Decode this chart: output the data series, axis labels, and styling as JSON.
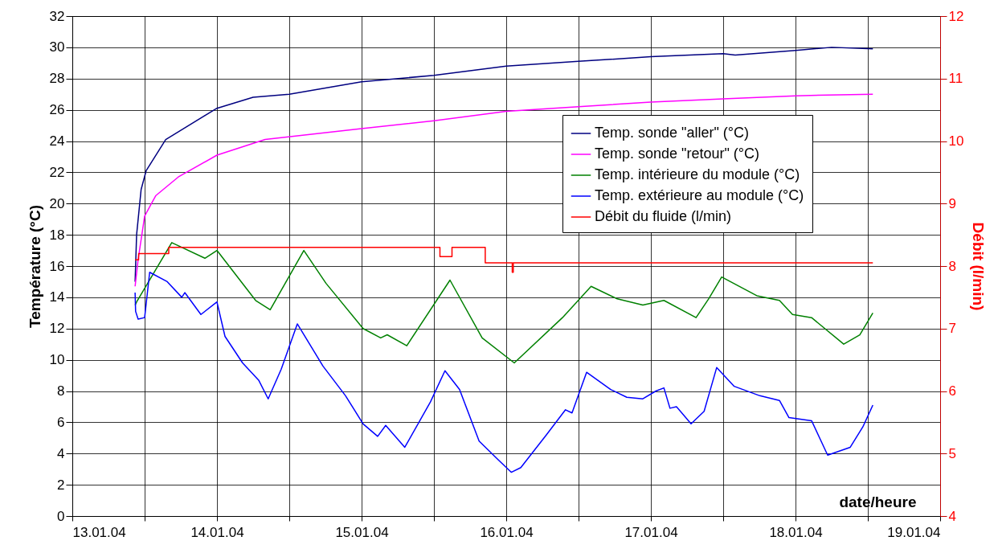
{
  "chart_data": {
    "type": "line",
    "xlabel": "date/heure",
    "ylabel": "Température (°C)",
    "y2label": "Débit (l/min)",
    "xlim": [
      "--01-13",
      "--01-19"
    ],
    "xticks": [
      {
        "value": "--01-13",
        "label": "13.01.04"
      },
      {
        "value": "--01-13T12:00",
        "label": null
      },
      {
        "value": "--01-14",
        "label": "14.01.04"
      },
      {
        "value": "--01-14T12:00",
        "label": null
      },
      {
        "value": "--01-15",
        "label": "15.01.04"
      },
      {
        "value": "--01-15T12:00",
        "label": null
      },
      {
        "value": "--01-16",
        "label": "16.01.04"
      },
      {
        "value": "--01-16T12:00",
        "label": null
      },
      {
        "value": "--01-17",
        "label": "17.01.04"
      },
      {
        "value": "--01-17T12:00",
        "label": null
      },
      {
        "value": "--01-18",
        "label": "18.01.04"
      },
      {
        "value": "--01-18T12:00",
        "label": null
      },
      {
        "value": "--01-19",
        "label": "19.01.04"
      }
    ],
    "ylim": [
      0,
      32
    ],
    "yticks": [
      0,
      2,
      4,
      6,
      8,
      10,
      12,
      14,
      16,
      18,
      20,
      22,
      24,
      26,
      28,
      30,
      32
    ],
    "y2lim": [
      4,
      12
    ],
    "y2ticks": [
      4,
      5,
      6,
      7,
      8,
      9,
      10,
      11,
      12
    ],
    "grid": true,
    "legend": "top right",
    "series": [
      {
        "name": "Temp. sonde \"aller\" (°C)",
        "color": "#000080",
        "x": [
          "--01-13T10:25",
          "--01-13T10:40",
          "--01-13T11:25",
          "--01-13T12:15",
          "--01-13T15:30",
          "--01-14T00:00",
          "--01-14T06:00",
          "--01-14T12:00",
          "--01-14T18:00",
          "--01-15T00:00",
          "--01-15T12:00",
          "--01-16T00:00",
          "--01-16T12:00",
          "--01-17T00:00",
          "--01-17T12:00",
          "--01-17T14:00",
          "--01-18T00:00",
          "--01-18T06:00",
          "--01-18T12:50"
        ],
        "values": [
          15.0,
          18.0,
          20.9,
          22.1,
          24.1,
          26.1,
          26.8,
          27.0,
          27.4,
          27.8,
          28.2,
          28.8,
          29.1,
          29.4,
          29.6,
          29.5,
          29.8,
          30.0,
          29.9
        ]
      },
      {
        "name": "Temp. sonde \"retour\" (°C)",
        "color": "#ff00ff",
        "x": [
          "--01-13T10:25",
          "--01-13T10:55",
          "--01-13T12:00",
          "--01-13T13:50",
          "--01-13T17:35",
          "--01-14T00:00",
          "--01-14T08:00",
          "--01-15T00:00",
          "--01-15T12:00",
          "--01-16T00:00",
          "--01-16T12:00",
          "--01-17T00:00",
          "--01-17T12:00",
          "--01-18T00:00",
          "--01-18T12:50"
        ],
        "values": [
          14.7,
          16.4,
          19.2,
          20.5,
          21.7,
          23.1,
          24.1,
          24.8,
          25.3,
          25.9,
          26.2,
          26.5,
          26.7,
          26.9,
          27.0
        ]
      },
      {
        "name": "Temp. intérieure du module (°C)",
        "color": "#008000",
        "x": [
          "--01-13T10:25",
          "--01-13T10:40",
          "--01-13T16:30",
          "--01-13T22:00",
          "--01-14T00:00",
          "--01-14T06:25",
          "--01-14T08:50",
          "--01-14T14:25",
          "--01-14T18:05",
          "--01-15T00:15",
          "--01-15T03:10",
          "--01-15T04:15",
          "--01-15T07:30",
          "--01-15T14:40",
          "--01-15T20:00",
          "--01-16T01:20",
          "--01-16T09:20",
          "--01-16T14:05",
          "--01-16T18:25",
          "--01-16T22:40",
          "--01-17T02:10",
          "--01-17T07:30",
          "--01-17T09:35",
          "--01-17T11:45",
          "--01-17T17:35",
          "--01-17T21:20",
          "--01-17T23:30",
          "--01-18T02:40",
          "--01-18T08:00",
          "--01-18T10:40",
          "--01-18T12:50"
        ],
        "values": [
          13.5,
          13.7,
          17.5,
          16.5,
          17.0,
          13.8,
          13.2,
          17.0,
          14.9,
          12.0,
          11.4,
          11.6,
          10.9,
          15.1,
          11.4,
          9.8,
          12.7,
          14.7,
          13.9,
          13.5,
          13.8,
          12.7,
          13.9,
          15.3,
          14.1,
          13.8,
          12.9,
          12.7,
          11.0,
          11.6,
          13.0
        ]
      },
      {
        "name": "Temp. extérieure au module (°C)",
        "color": "#0000ff",
        "x": [
          "--01-13T10:25",
          "--01-13T10:30",
          "--01-13T10:55",
          "--01-13T12:00",
          "--01-13T12:50",
          "--01-13T15:45",
          "--01-13T18:10",
          "--01-13T18:40",
          "--01-13T21:20",
          "--01-14T00:00",
          "--01-14T01:20",
          "--01-14T04:15",
          "--01-14T06:55",
          "--01-14T08:30",
          "--01-14T10:40",
          "--01-14T13:20",
          "--01-14T17:35",
          "--01-14T21:20",
          "--01-15T00:15",
          "--01-15T02:40",
          "--01-15T04:00",
          "--01-15T07:10",
          "--01-15T11:25",
          "--01-15T13:50",
          "--01-15T16:15",
          "--01-15T19:30",
          "--01-15T22:40",
          "--01-16T00:50",
          "--01-16T02:25",
          "--01-16T06:40",
          "--01-16T09:50",
          "--01-16T10:55",
          "--01-16T13:20",
          "--01-16T17:20",
          "--01-16T20:00",
          "--01-16T22:40",
          "--01-17T00:50",
          "--01-17T02:10",
          "--01-17T03:10",
          "--01-17T04:15",
          "--01-17T06:40",
          "--01-17T08:50",
          "--01-17T10:55",
          "--01-17T13:50",
          "--01-17T18:05",
          "--01-17T21:20",
          "--01-17T22:55",
          "--01-18T02:40",
          "--01-18T05:20",
          "--01-18T09:05",
          "--01-18T11:10",
          "--01-18T12:50"
        ],
        "values": [
          14.3,
          13.1,
          12.6,
          12.7,
          15.6,
          15.0,
          14.0,
          14.3,
          12.9,
          13.7,
          11.5,
          9.8,
          8.7,
          7.5,
          9.4,
          12.3,
          9.6,
          7.7,
          5.9,
          5.1,
          5.8,
          4.4,
          7.3,
          9.3,
          8.1,
          4.8,
          3.6,
          2.8,
          3.1,
          5.2,
          6.8,
          6.6,
          9.2,
          8.1,
          7.6,
          7.5,
          8.0,
          8.2,
          6.9,
          7.0,
          5.9,
          6.7,
          9.5,
          8.3,
          7.7,
          7.4,
          6.3,
          6.1,
          3.9,
          4.4,
          5.7,
          7.1
        ]
      },
      {
        "name": "Débit du fluide (l/min)",
        "color": "#ff0000",
        "type": "step",
        "axis": "y2",
        "x": [
          "--01-13T10:25",
          "--01-13T11:00",
          "--01-13T16:00",
          "--01-15T13:00",
          "--01-15T15:00",
          "--01-15T20:30",
          "--01-15T20:31",
          "--01-16T01:00",
          "--01-16T01:10",
          "--01-18T12:50"
        ],
        "values": [
          8.1,
          8.2,
          8.3,
          8.15,
          8.3,
          8.3,
          8.05,
          7.9,
          8.05,
          8.05
        ]
      }
    ]
  }
}
